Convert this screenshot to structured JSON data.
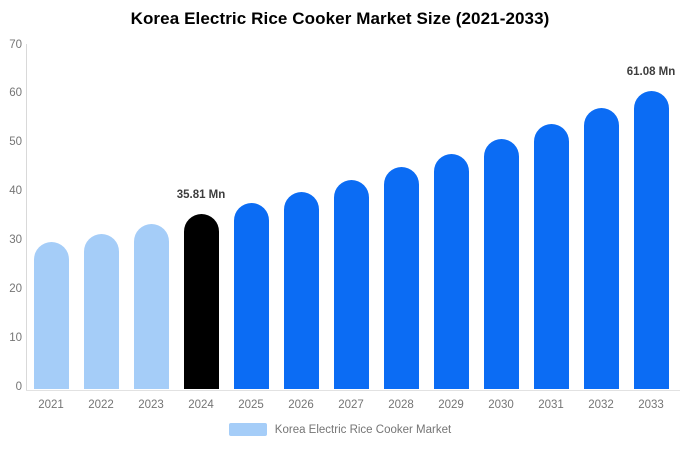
{
  "title": "Korea Electric Rice Cooker Market Size (2021-2033)",
  "legend": {
    "label": "Korea Electric Rice Cooker Market",
    "swatch_color": "#a5cdf8"
  },
  "colors": {
    "historical_bar": "#a5cdf8",
    "base_year_bar": "#000000",
    "forecast_bar": "#0b6cf4",
    "axis_line": "#d9d9d9",
    "tick_text": "#757575",
    "annotation_text": "#3d3d3d",
    "title_text": "#000000"
  },
  "chart_data": {
    "type": "bar",
    "title": "Korea Electric Rice Cooker Market Size (2021-2033)",
    "xlabel": "",
    "ylabel": "",
    "unit": "Mn",
    "categories": [
      "2021",
      "2022",
      "2023",
      "2024",
      "2025",
      "2026",
      "2027",
      "2028",
      "2029",
      "2030",
      "2031",
      "2032",
      "2033"
    ],
    "values": [
      30.0,
      31.8,
      33.8,
      35.81,
      38.0,
      40.3,
      42.8,
      45.4,
      48.2,
      51.1,
      54.2,
      57.6,
      61.08
    ],
    "bar_roles": [
      "historical",
      "historical",
      "historical",
      "base_year",
      "forecast",
      "forecast",
      "forecast",
      "forecast",
      "forecast",
      "forecast",
      "forecast",
      "forecast",
      "forecast"
    ],
    "ylim": [
      0,
      70
    ],
    "yticks": [
      0,
      10,
      20,
      30,
      40,
      50,
      60,
      70
    ],
    "grid": false,
    "legend_position": "bottom",
    "legend_entries": [
      "Korea Electric Rice Cooker Market"
    ],
    "annotations": [
      {
        "category": "2024",
        "index": 3,
        "text": "35.81 Mn"
      },
      {
        "category": "2033",
        "index": 12,
        "text": "61.08 Mn"
      }
    ]
  }
}
